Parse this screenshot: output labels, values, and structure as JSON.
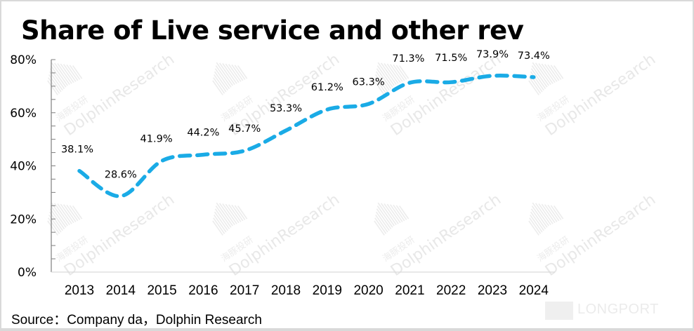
{
  "chart_data": {
    "type": "line",
    "title": "Share of Live service and other rev",
    "xlabel": "",
    "ylabel": "",
    "categories": [
      "2013",
      "2014",
      "2015",
      "2016",
      "2017",
      "2018",
      "2019",
      "2020",
      "2021",
      "2022",
      "2023",
      "2024"
    ],
    "series": [
      {
        "name": "Share of Live service and other rev",
        "values": [
          38.1,
          28.6,
          41.9,
          44.2,
          45.7,
          53.3,
          61.2,
          63.3,
          71.3,
          71.5,
          73.9,
          73.4
        ],
        "labels": [
          "38.1%",
          "28.6%",
          "41.9%",
          "44.2%",
          "45.7%",
          "53.3%",
          "61.2%",
          "63.3%",
          "71.3%",
          "71.5%",
          "73.9%",
          "73.4%"
        ],
        "color": "#1AABE6",
        "line_style": "dashed",
        "smooth": true
      }
    ],
    "ylim": [
      0,
      80
    ],
    "yticks": [
      0,
      20,
      40,
      60,
      80
    ],
    "ytick_labels": [
      "0%",
      "20%",
      "40%",
      "60%",
      "80%"
    ],
    "y_minor_step": 5,
    "grid": false,
    "legend": "none",
    "source": "Source：Company da，Dolphin Research"
  },
  "watermarks": {
    "brand_en": "DolphinResearch",
    "brand_cn": "海豚投研",
    "corner": "LONGPORT"
  }
}
